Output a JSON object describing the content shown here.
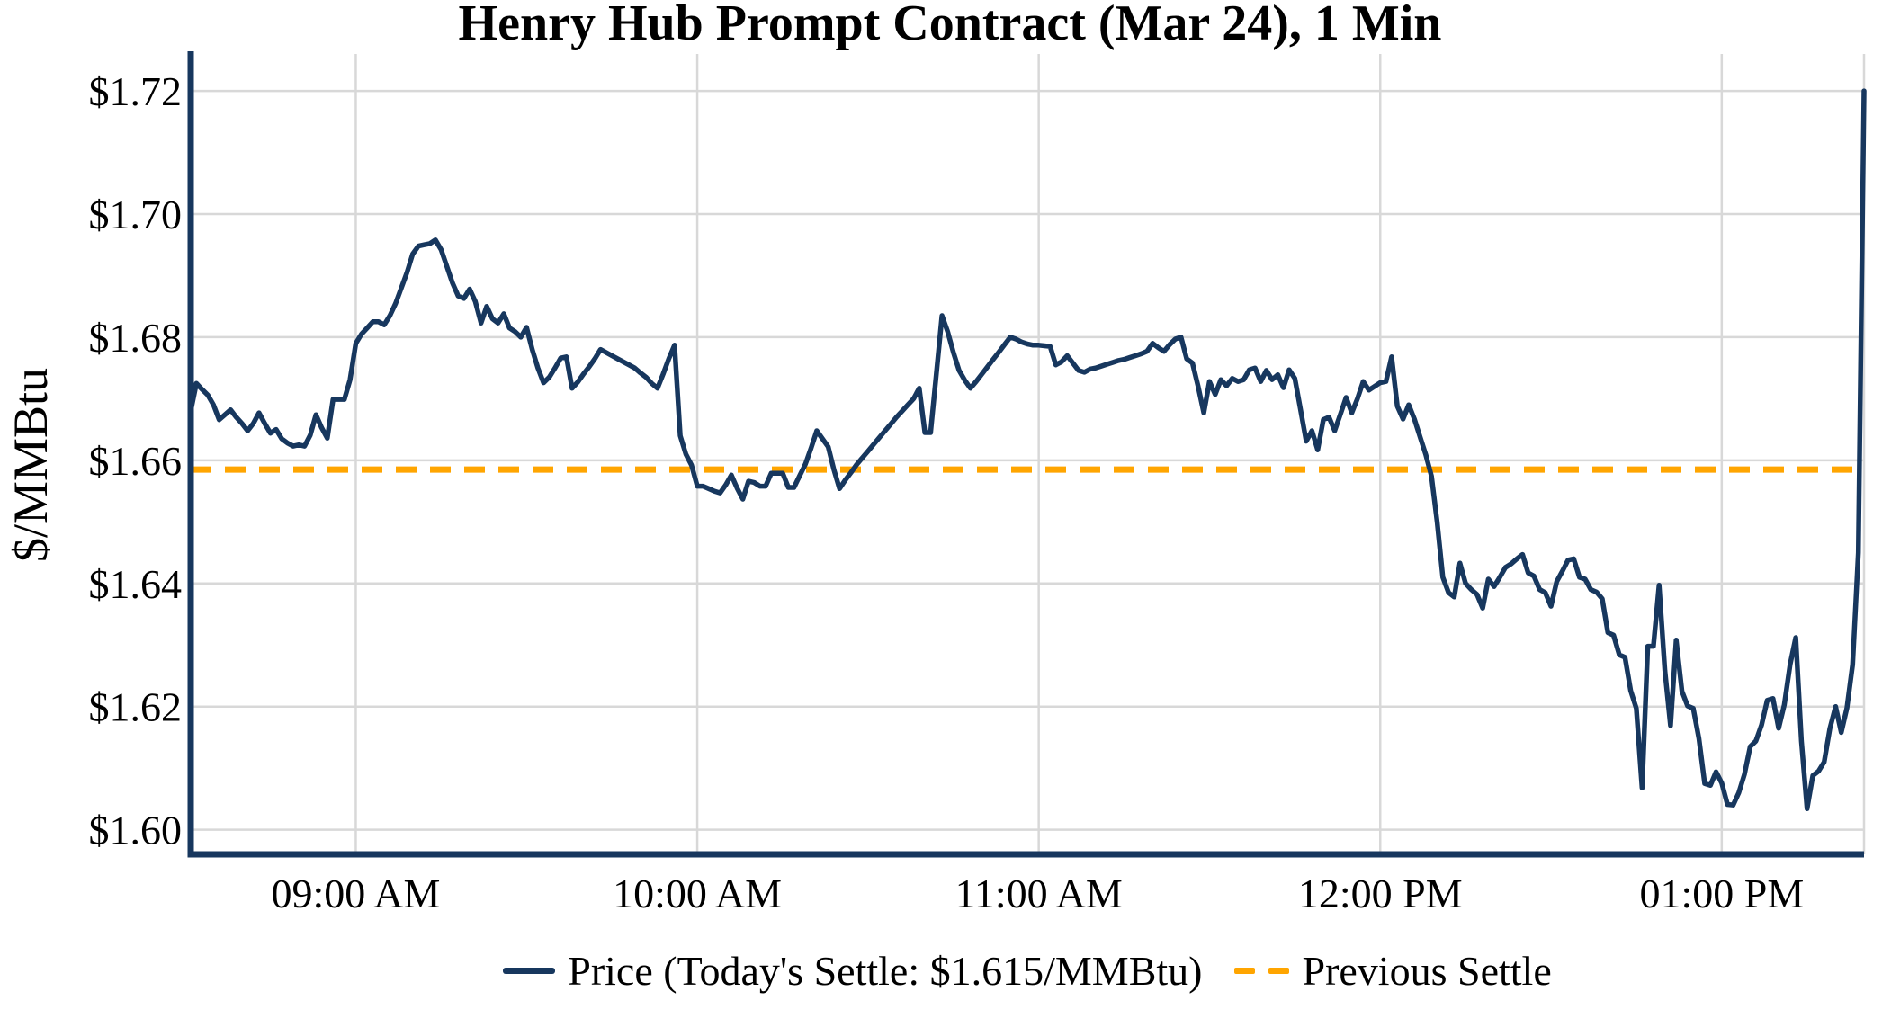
{
  "title": "Henry Hub Prompt Contract (Mar 24), 1 Min",
  "y_axis": {
    "label": "$/MMBtu",
    "tick_labels": [
      "$1.60",
      "$1.62",
      "$1.64",
      "$1.66",
      "$1.68",
      "$1.70",
      "$1.72"
    ],
    "tick_values": [
      1.6,
      1.62,
      1.64,
      1.66,
      1.68,
      1.7,
      1.72
    ]
  },
  "x_axis": {
    "tick_labels": [
      "09:00 AM",
      "10:00 AM",
      "11:00 AM",
      "12:00 PM",
      "01:00 PM"
    ],
    "tick_indices": [
      29,
      89,
      149,
      209,
      269
    ]
  },
  "legend": {
    "price_label": "Price (Today's Settle: $1.615/MMBtu)",
    "previous_settle_label": "Previous Settle"
  },
  "colors": {
    "price_line": "#17375e",
    "previous_settle": "#ffa500",
    "gridline": "#d8d8d8",
    "axis": "#17375e",
    "text": "#000000",
    "background": "#ffffff"
  },
  "chart_data": {
    "type": "line",
    "title": "Henry Hub Prompt Contract (Mar 24), 1 Min",
    "xlabel": "",
    "ylabel": "$/MMBtu",
    "ylim": [
      1.596,
      1.726
    ],
    "grid": true,
    "legend_position": "bottom",
    "x_start": "08:31 AM",
    "x_end": "01:25 PM",
    "interval_minutes": 1,
    "todays_settle": 1.615,
    "previous_settle": 1.6585,
    "series": [
      {
        "name": "Price",
        "values": [
          1.668,
          1.6725,
          1.6715,
          1.6706,
          1.669,
          1.6666,
          1.6674,
          1.6682,
          1.667,
          1.666,
          1.6648,
          1.666,
          1.6677,
          1.666,
          1.6644,
          1.665,
          1.6635,
          1.6628,
          1.6623,
          1.6625,
          1.6623,
          1.6641,
          1.6674,
          1.6653,
          1.6636,
          1.6699,
          1.6699,
          1.6699,
          1.6731,
          1.679,
          1.6805,
          1.6815,
          1.6825,
          1.6825,
          1.682,
          1.6835,
          1.6855,
          1.688,
          1.6905,
          1.6935,
          1.6948,
          1.695,
          1.6952,
          1.6958,
          1.6942,
          1.6915,
          1.6888,
          1.6867,
          1.6863,
          1.6878,
          1.6858,
          1.6823,
          1.685,
          1.683,
          1.6823,
          1.6838,
          1.6815,
          1.6809,
          1.68,
          1.6816,
          1.678,
          1.675,
          1.6726,
          1.6735,
          1.675,
          1.6766,
          1.6768,
          1.6717,
          1.6727,
          1.674,
          1.6752,
          1.6765,
          1.678,
          1.6775,
          1.677,
          1.6765,
          1.676,
          1.6755,
          1.675,
          1.6742,
          1.6735,
          1.6725,
          1.6717,
          1.674,
          1.6765,
          1.6787,
          1.664,
          1.661,
          1.6592,
          1.6558,
          1.6558,
          1.6554,
          1.655,
          1.6547,
          1.656,
          1.6576,
          1.6555,
          1.6537,
          1.6566,
          1.6564,
          1.6558,
          1.6558,
          1.6579,
          1.6579,
          1.6579,
          1.6556,
          1.6556,
          1.6575,
          1.6594,
          1.662,
          1.6648,
          1.6635,
          1.6622,
          1.6585,
          1.6554,
          1.6568,
          1.658,
          1.6593,
          1.6604,
          1.6615,
          1.6626,
          1.6637,
          1.6648,
          1.6659,
          1.667,
          1.668,
          1.669,
          1.67,
          1.6717,
          1.6645,
          1.6645,
          1.674,
          1.6835,
          1.6809,
          1.6775,
          1.6746,
          1.673,
          1.6717,
          1.6728,
          1.674,
          1.6752,
          1.6764,
          1.6776,
          1.6788,
          1.68,
          1.6797,
          1.6792,
          1.6789,
          1.6787,
          1.6787,
          1.6786,
          1.6785,
          1.6755,
          1.676,
          1.677,
          1.6758,
          1.6746,
          1.6743,
          1.6748,
          1.675,
          1.6753,
          1.6756,
          1.6759,
          1.6762,
          1.6764,
          1.6767,
          1.677,
          1.6773,
          1.6777,
          1.679,
          1.6783,
          1.6777,
          1.6788,
          1.6797,
          1.68,
          1.6765,
          1.6758,
          1.672,
          1.6677,
          1.6728,
          1.6707,
          1.6731,
          1.6721,
          1.6733,
          1.6728,
          1.6731,
          1.6747,
          1.675,
          1.6728,
          1.6746,
          1.6731,
          1.6739,
          1.6718,
          1.6747,
          1.6733,
          1.6682,
          1.6631,
          1.6648,
          1.6617,
          1.6666,
          1.667,
          1.6648,
          1.6675,
          1.6702,
          1.6677,
          1.67,
          1.6728,
          1.6714,
          1.672,
          1.6726,
          1.6728,
          1.6768,
          1.6688,
          1.6667,
          1.669,
          1.6667,
          1.6638,
          1.6609,
          1.6574,
          1.65,
          1.641,
          1.6385,
          1.6378,
          1.6433,
          1.64,
          1.639,
          1.6382,
          1.636,
          1.6407,
          1.6395,
          1.641,
          1.6426,
          1.6432,
          1.644,
          1.6447,
          1.6417,
          1.6412,
          1.639,
          1.6385,
          1.6363,
          1.6403,
          1.642,
          1.6438,
          1.644,
          1.641,
          1.6407,
          1.639,
          1.6386,
          1.6375,
          1.632,
          1.6316,
          1.6284,
          1.628,
          1.6226,
          1.6197,
          1.6068,
          1.6298,
          1.6298,
          1.6397,
          1.6259,
          1.6169,
          1.6308,
          1.6225,
          1.6201,
          1.6197,
          1.6148,
          1.6075,
          1.6072,
          1.6094,
          1.6076,
          1.6041,
          1.604,
          1.606,
          1.609,
          1.6135,
          1.6144,
          1.617,
          1.621,
          1.6213,
          1.6165,
          1.6203,
          1.6268,
          1.6312,
          1.6144,
          1.6034,
          1.6088,
          1.6095,
          1.611,
          1.6164,
          1.62,
          1.6158,
          1.6198,
          1.6268,
          1.645,
          1.72
        ]
      }
    ]
  }
}
